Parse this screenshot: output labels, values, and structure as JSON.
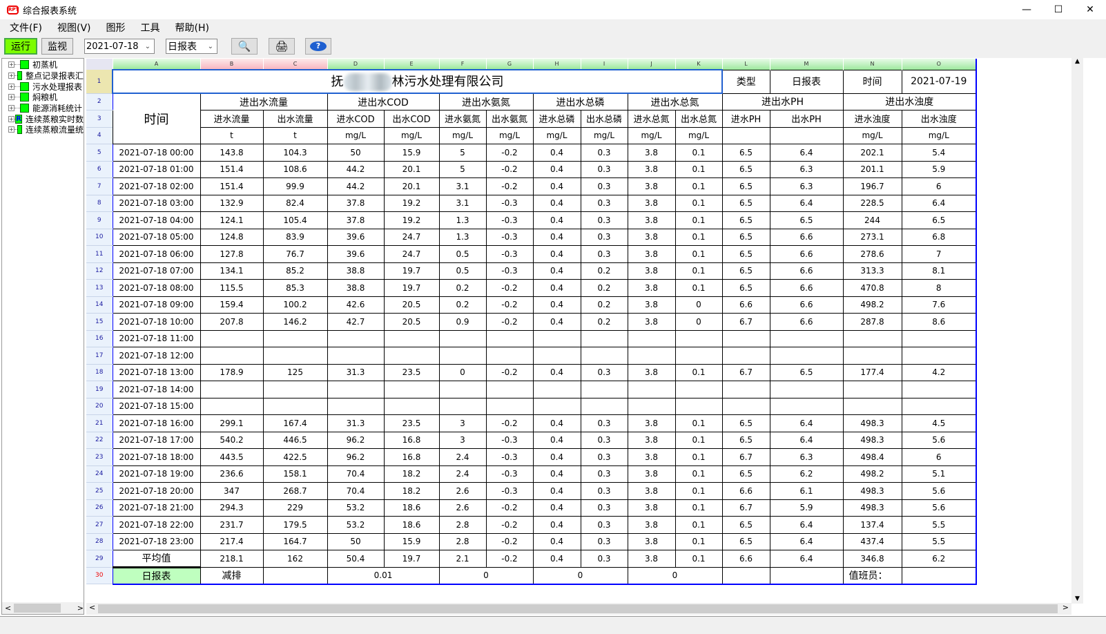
{
  "window": {
    "title": "综合报表系统",
    "logo_text": "RPT"
  },
  "menu": [
    "文件(F)",
    "视图(V)",
    "图形",
    "工具",
    "帮助(H)"
  ],
  "toolbar": {
    "run": "运行",
    "monitor": "监视",
    "date": "2021-07-18",
    "report_type": "日报表",
    "icons": [
      "search-icon",
      "print-icon",
      "help-icon"
    ],
    "run_color": "#7cfc00"
  },
  "tree": [
    {
      "label": "初蒸机",
      "icon": "chart-icon"
    },
    {
      "label": "整点记录报表汇",
      "icon": "chart-icon"
    },
    {
      "label": "污水处理报表",
      "icon": "chart-icon"
    },
    {
      "label": "焖粮机",
      "icon": "chart-icon"
    },
    {
      "label": "能源消耗统计",
      "icon": "blank-icon"
    },
    {
      "label": "连续蒸粮实时数",
      "icon": "report-icon"
    },
    {
      "label": "连续蒸粮流量统",
      "icon": "chart-icon"
    }
  ],
  "columns": [
    "A",
    "B",
    "C",
    "D",
    "E",
    "F",
    "G",
    "H",
    "I",
    "J",
    "K",
    "L",
    "M",
    "N",
    "O"
  ],
  "sheet": {
    "title_prefix": "抚",
    "title_suffix": "林污水处理有限公司",
    "type_label": "类型",
    "type_value": "日报表",
    "time_label": "时间",
    "time_value": "2021-07-19",
    "time_header": "时间",
    "groups": [
      "进出水流量",
      "进出水COD",
      "进出水氨氮",
      "进出水总磷",
      "进出水总氮",
      "进出水PH",
      "进出水浊度"
    ],
    "subheaders": [
      "进水流量",
      "出水流量",
      "进水COD",
      "出水COD",
      "进水氨氮",
      "出水氨氮",
      "进水总磷",
      "出水总磷",
      "进水总氮",
      "出水总氮",
      "进水PH",
      "出水PH",
      "进水浊度",
      "出水浊度"
    ],
    "units": [
      "t",
      "t",
      "mg/L",
      "mg/L",
      "mg/L",
      "mg/L",
      "mg/L",
      "mg/L",
      "mg/L",
      "mg/L",
      "",
      "",
      "mg/L",
      "mg/L"
    ],
    "rows": [
      [
        "2021-07-18 00:00",
        "143.8",
        "104.3",
        "50",
        "15.9",
        "5",
        "-0.2",
        "0.4",
        "0.3",
        "3.8",
        "0.1",
        "6.5",
        "6.4",
        "202.1",
        "5.4"
      ],
      [
        "2021-07-18 01:00",
        "151.4",
        "108.6",
        "44.2",
        "20.1",
        "5",
        "-0.2",
        "0.4",
        "0.3",
        "3.8",
        "0.1",
        "6.5",
        "6.3",
        "201.1",
        "5.9"
      ],
      [
        "2021-07-18 02:00",
        "151.4",
        "99.9",
        "44.2",
        "20.1",
        "3.1",
        "-0.2",
        "0.4",
        "0.3",
        "3.8",
        "0.1",
        "6.5",
        "6.3",
        "196.7",
        "6"
      ],
      [
        "2021-07-18 03:00",
        "132.9",
        "82.4",
        "37.8",
        "19.2",
        "3.1",
        "-0.3",
        "0.4",
        "0.3",
        "3.8",
        "0.1",
        "6.5",
        "6.4",
        "228.5",
        "6.4"
      ],
      [
        "2021-07-18 04:00",
        "124.1",
        "105.4",
        "37.8",
        "19.2",
        "1.3",
        "-0.3",
        "0.4",
        "0.3",
        "3.8",
        "0.1",
        "6.5",
        "6.5",
        "244",
        "6.5"
      ],
      [
        "2021-07-18 05:00",
        "124.8",
        "83.9",
        "39.6",
        "24.7",
        "1.3",
        "-0.3",
        "0.4",
        "0.3",
        "3.8",
        "0.1",
        "6.5",
        "6.6",
        "273.1",
        "6.8"
      ],
      [
        "2021-07-18 06:00",
        "127.8",
        "76.7",
        "39.6",
        "24.7",
        "0.5",
        "-0.3",
        "0.4",
        "0.3",
        "3.8",
        "0.1",
        "6.5",
        "6.6",
        "278.6",
        "7"
      ],
      [
        "2021-07-18 07:00",
        "134.1",
        "85.2",
        "38.8",
        "19.7",
        "0.5",
        "-0.3",
        "0.4",
        "0.2",
        "3.8",
        "0.1",
        "6.5",
        "6.6",
        "313.3",
        "8.1"
      ],
      [
        "2021-07-18 08:00",
        "115.5",
        "85.3",
        "38.8",
        "19.7",
        "0.2",
        "-0.2",
        "0.4",
        "0.2",
        "3.8",
        "0.1",
        "6.5",
        "6.6",
        "470.8",
        "8"
      ],
      [
        "2021-07-18 09:00",
        "159.4",
        "100.2",
        "42.6",
        "20.5",
        "0.2",
        "-0.2",
        "0.4",
        "0.2",
        "3.8",
        "0",
        "6.6",
        "6.6",
        "498.2",
        "7.6"
      ],
      [
        "2021-07-18 10:00",
        "207.8",
        "146.2",
        "42.7",
        "20.5",
        "0.9",
        "-0.2",
        "0.4",
        "0.2",
        "3.8",
        "0",
        "6.7",
        "6.6",
        "287.8",
        "8.6"
      ],
      [
        "2021-07-18 11:00",
        "",
        "",
        "",
        "",
        "",
        "",
        "",
        "",
        "",
        "",
        "",
        "",
        "",
        ""
      ],
      [
        "2021-07-18 12:00",
        "",
        "",
        "",
        "",
        "",
        "",
        "",
        "",
        "",
        "",
        "",
        "",
        "",
        ""
      ],
      [
        "2021-07-18 13:00",
        "178.9",
        "125",
        "31.3",
        "23.5",
        "0",
        "-0.2",
        "0.4",
        "0.3",
        "3.8",
        "0.1",
        "6.7",
        "6.5",
        "177.4",
        "4.2"
      ],
      [
        "2021-07-18 14:00",
        "",
        "",
        "",
        "",
        "",
        "",
        "",
        "",
        "",
        "",
        "",
        "",
        "",
        ""
      ],
      [
        "2021-07-18 15:00",
        "",
        "",
        "",
        "",
        "",
        "",
        "",
        "",
        "",
        "",
        "",
        "",
        "",
        ""
      ],
      [
        "2021-07-18 16:00",
        "299.1",
        "167.4",
        "31.3",
        "23.5",
        "3",
        "-0.2",
        "0.4",
        "0.3",
        "3.8",
        "0.1",
        "6.5",
        "6.4",
        "498.3",
        "4.5"
      ],
      [
        "2021-07-18 17:00",
        "540.2",
        "446.5",
        "96.2",
        "16.8",
        "3",
        "-0.3",
        "0.4",
        "0.3",
        "3.8",
        "0.1",
        "6.5",
        "6.4",
        "498.3",
        "5.6"
      ],
      [
        "2021-07-18 18:00",
        "443.5",
        "422.5",
        "96.2",
        "16.8",
        "2.4",
        "-0.3",
        "0.4",
        "0.3",
        "3.8",
        "0.1",
        "6.7",
        "6.3",
        "498.4",
        "6"
      ],
      [
        "2021-07-18 19:00",
        "236.6",
        "158.1",
        "70.4",
        "18.2",
        "2.4",
        "-0.3",
        "0.4",
        "0.3",
        "3.8",
        "0.1",
        "6.5",
        "6.2",
        "498.2",
        "5.1"
      ],
      [
        "2021-07-18 20:00",
        "347",
        "268.7",
        "70.4",
        "18.2",
        "2.6",
        "-0.3",
        "0.4",
        "0.3",
        "3.8",
        "0.1",
        "6.6",
        "6.1",
        "498.3",
        "5.6"
      ],
      [
        "2021-07-18 21:00",
        "294.3",
        "229",
        "53.2",
        "18.6",
        "2.6",
        "-0.2",
        "0.4",
        "0.3",
        "3.8",
        "0.1",
        "6.7",
        "5.9",
        "498.3",
        "5.6"
      ],
      [
        "2021-07-18 22:00",
        "231.7",
        "179.5",
        "53.2",
        "18.6",
        "2.8",
        "-0.2",
        "0.4",
        "0.3",
        "3.8",
        "0.1",
        "6.5",
        "6.4",
        "137.4",
        "5.5"
      ],
      [
        "2021-07-18 23:00",
        "217.4",
        "164.7",
        "50",
        "15.9",
        "2.8",
        "-0.2",
        "0.4",
        "0.3",
        "3.8",
        "0.1",
        "6.5",
        "6.4",
        "437.4",
        "5.5"
      ],
      [
        "平均值",
        "218.1",
        "162",
        "50.4",
        "19.7",
        "2.1",
        "-0.2",
        "0.4",
        "0.3",
        "3.8",
        "0.1",
        "6.6",
        "6.4",
        "346.8",
        "6.2"
      ]
    ],
    "footer": {
      "label": "日报表",
      "reduction_label": "减排",
      "cod": "0.01",
      "nh3n": "0",
      "tp": "0",
      "tn": "0",
      "duty_label": "值班员："
    }
  }
}
